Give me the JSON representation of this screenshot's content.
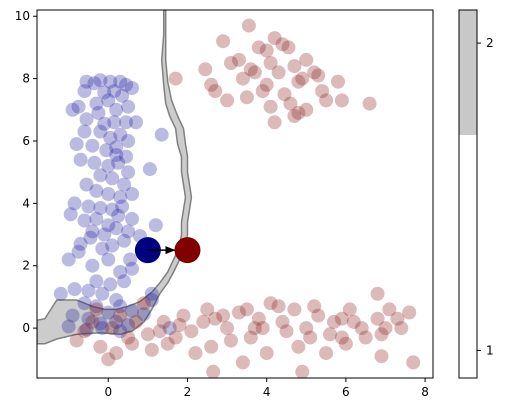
{
  "chart_data": {
    "type": "scatter",
    "title": "",
    "xlabel": "",
    "ylabel": "",
    "xlim": [
      -1.8,
      8.2
    ],
    "ylim": [
      -1.6,
      10.2
    ],
    "x_ticks": [
      0,
      2,
      4,
      6,
      8
    ],
    "y_ticks": [
      0,
      2,
      4,
      6,
      8,
      10
    ],
    "grid": false,
    "series": [
      {
        "color": "#1f1f9e",
        "alpha": 0.3,
        "points": [
          [
            -0.55,
            7.9
          ],
          [
            -0.35,
            7.85
          ],
          [
            -0.2,
            7.95
          ],
          [
            0.05,
            7.9
          ],
          [
            0.3,
            7.9
          ],
          [
            0.45,
            7.8
          ],
          [
            -0.6,
            7.6
          ],
          [
            -0.1,
            7.55
          ],
          [
            0.15,
            7.6
          ],
          [
            0.35,
            7.45
          ],
          [
            -0.9,
            7.0
          ],
          [
            -0.75,
            7.1
          ],
          [
            -0.3,
            7.2
          ],
          [
            0.0,
            7.3
          ],
          [
            0.2,
            7.0
          ],
          [
            0.5,
            7.1
          ],
          [
            -0.55,
            6.7
          ],
          [
            -0.1,
            6.55
          ],
          [
            0.15,
            6.6
          ],
          [
            0.45,
            6.6
          ],
          [
            -0.6,
            6.3
          ],
          [
            -0.2,
            6.3
          ],
          [
            0.05,
            6.1
          ],
          [
            0.3,
            6.2
          ],
          [
            0.5,
            6.0
          ],
          [
            -0.4,
            5.85
          ],
          [
            -0.05,
            5.7
          ],
          [
            0.2,
            5.8
          ],
          [
            0.45,
            5.5
          ],
          [
            -0.7,
            5.4
          ],
          [
            -0.35,
            5.3
          ],
          [
            0.0,
            5.2
          ],
          [
            0.25,
            5.3
          ],
          [
            0.5,
            5.0
          ],
          [
            -0.2,
            4.9
          ],
          [
            0.1,
            4.8
          ],
          [
            0.4,
            4.6
          ],
          [
            -0.55,
            4.6
          ],
          [
            -0.3,
            4.4
          ],
          [
            0.0,
            4.3
          ],
          [
            0.3,
            4.2
          ],
          [
            -0.85,
            4.0
          ],
          [
            -0.5,
            3.9
          ],
          [
            -0.2,
            3.85
          ],
          [
            0.1,
            3.8
          ],
          [
            0.35,
            3.9
          ],
          [
            0.6,
            3.5
          ],
          [
            -0.95,
            3.65
          ],
          [
            -0.6,
            3.45
          ],
          [
            -0.3,
            3.5
          ],
          [
            0.0,
            3.3
          ],
          [
            0.25,
            3.6
          ],
          [
            -0.4,
            3.1
          ],
          [
            -0.1,
            3.0
          ],
          [
            0.2,
            3.2
          ],
          [
            0.5,
            3.1
          ],
          [
            0.8,
            2.95
          ],
          [
            -0.7,
            2.7
          ],
          [
            -0.45,
            2.9
          ],
          [
            -0.15,
            2.55
          ],
          [
            0.1,
            2.65
          ],
          [
            0.4,
            2.8
          ],
          [
            -1.0,
            2.2
          ],
          [
            -0.75,
            2.45
          ],
          [
            -0.4,
            2.0
          ],
          [
            0.0,
            2.2
          ],
          [
            0.3,
            1.8
          ],
          [
            0.6,
            1.9
          ],
          [
            -0.3,
            1.5
          ],
          [
            0.05,
            1.4
          ],
          [
            0.4,
            1.5
          ],
          [
            -0.85,
            1.25
          ],
          [
            -0.5,
            1.2
          ],
          [
            -0.15,
            1.1
          ],
          [
            0.2,
            0.9
          ],
          [
            -0.6,
            0.8
          ],
          [
            -0.3,
            0.7
          ],
          [
            0.0,
            0.5
          ],
          [
            0.3,
            0.7
          ],
          [
            0.6,
            0.55
          ],
          [
            -0.9,
            0.4
          ],
          [
            -0.5,
            0.3
          ],
          [
            -0.2,
            0.15
          ],
          [
            0.2,
            0.2
          ],
          [
            0.5,
            0.1
          ],
          [
            0.9,
            0.45
          ],
          [
            -1.0,
            0.05
          ],
          [
            -0.55,
            -0.05
          ],
          [
            -0.15,
            0.0
          ],
          [
            0.3,
            -0.1
          ],
          [
            1.35,
            6.2
          ],
          [
            1.05,
            5.1
          ],
          [
            1.2,
            3.3
          ],
          [
            0.95,
            2.3
          ],
          [
            1.1,
            1.1
          ],
          [
            1.55,
            0.0
          ],
          [
            1.1,
            0.9
          ],
          [
            -0.8,
            5.9
          ],
          [
            0.6,
            4.3
          ],
          [
            0.55,
            2.2
          ],
          [
            -1.2,
            1.1
          ],
          [
            0.7,
            6.6
          ],
          [
            0.6,
            7.7
          ],
          [
            -0.25,
            6.9
          ],
          [
            0.2,
            5.55
          ]
        ]
      },
      {
        "color": "#8b1a1a",
        "alpha": 0.3,
        "points": [
          [
            1.7,
            8.0
          ],
          [
            2.45,
            8.3
          ],
          [
            2.9,
            9.2
          ],
          [
            3.55,
            9.7
          ],
          [
            3.1,
            8.5
          ],
          [
            3.4,
            8.0
          ],
          [
            3.8,
            9.0
          ],
          [
            4.2,
            9.3
          ],
          [
            4.55,
            9.0
          ],
          [
            3.7,
            8.2
          ],
          [
            4.0,
            7.8
          ],
          [
            4.3,
            8.2
          ],
          [
            4.7,
            8.4
          ],
          [
            5.0,
            8.6
          ],
          [
            4.45,
            7.5
          ],
          [
            4.8,
            7.9
          ],
          [
            5.2,
            8.2
          ],
          [
            5.4,
            7.6
          ],
          [
            4.1,
            7.1
          ],
          [
            4.6,
            7.2
          ],
          [
            5.0,
            7.0
          ],
          [
            3.5,
            7.4
          ],
          [
            2.7,
            7.6
          ],
          [
            3.0,
            7.3
          ],
          [
            3.9,
            7.6
          ],
          [
            4.2,
            6.6
          ],
          [
            4.7,
            6.8
          ],
          [
            5.5,
            7.3
          ],
          [
            5.8,
            7.9
          ],
          [
            6.6,
            7.2
          ],
          [
            5.9,
            7.3
          ],
          [
            4.4,
            9.1
          ],
          [
            3.3,
            8.6
          ],
          [
            4.0,
            8.9
          ],
          [
            2.6,
            7.8
          ],
          [
            5.3,
            8.1
          ],
          [
            4.8,
            6.9
          ],
          [
            3.6,
            8.3
          ],
          [
            4.1,
            8.5
          ],
          [
            4.9,
            8.0
          ],
          [
            1.4,
            0.2
          ],
          [
            1.8,
            0.1
          ],
          [
            2.1,
            -0.1
          ],
          [
            2.5,
            0.6
          ],
          [
            2.7,
            0.3
          ],
          [
            3.0,
            0.0
          ],
          [
            3.3,
            0.5
          ],
          [
            3.6,
            -0.3
          ],
          [
            3.8,
            0.3
          ],
          [
            4.1,
            0.8
          ],
          [
            4.4,
            0.2
          ],
          [
            4.7,
            0.6
          ],
          [
            5.0,
            0.0
          ],
          [
            5.3,
            0.4
          ],
          [
            5.6,
            -0.2
          ],
          [
            5.9,
            0.3
          ],
          [
            6.2,
            0.2
          ],
          [
            6.5,
            -0.3
          ],
          [
            6.8,
            0.3
          ],
          [
            7.1,
            0.6
          ],
          [
            7.4,
            0.0
          ],
          [
            7.7,
            -1.1
          ],
          [
            6.9,
            -0.9
          ],
          [
            5.5,
            -0.8
          ],
          [
            4.9,
            -1.4
          ],
          [
            4.0,
            -0.8
          ],
          [
            3.4,
            -1.1
          ],
          [
            2.65,
            -1.4
          ],
          [
            2.2,
            -0.8
          ],
          [
            1.7,
            -0.3
          ],
          [
            1.1,
            -0.7
          ],
          [
            0.6,
            -0.5
          ],
          [
            0.2,
            -0.8
          ],
          [
            -0.2,
            -0.6
          ],
          [
            -0.6,
            -0.1
          ],
          [
            0.0,
            -1.0
          ],
          [
            -0.3,
            0.6
          ],
          [
            0.3,
            0.4
          ],
          [
            0.7,
            0.2
          ],
          [
            1.0,
            -0.2
          ],
          [
            1.3,
            -0.1
          ],
          [
            2.4,
            0.2
          ],
          [
            3.1,
            -0.4
          ],
          [
            3.9,
            0.0
          ],
          [
            4.5,
            -0.1
          ],
          [
            5.1,
            -0.3
          ],
          [
            5.7,
            0.2
          ],
          [
            6.0,
            -0.5
          ],
          [
            6.4,
            0.0
          ],
          [
            7.0,
            0.0
          ],
          [
            7.3,
            0.3
          ],
          [
            7.6,
            0.5
          ],
          [
            6.8,
            1.1
          ],
          [
            6.1,
            0.6
          ],
          [
            5.2,
            0.7
          ],
          [
            4.3,
            0.7
          ],
          [
            3.5,
            0.6
          ],
          [
            2.9,
            0.4
          ],
          [
            2.6,
            -0.6
          ],
          [
            1.9,
            0.4
          ],
          [
            1.5,
            -0.5
          ],
          [
            0.9,
            0.8
          ],
          [
            0.5,
            -0.3
          ],
          [
            -0.4,
            0.2
          ],
          [
            -0.8,
            -0.4
          ],
          [
            0.1,
            0.0
          ],
          [
            3.7,
            0.0
          ],
          [
            4.8,
            -0.6
          ],
          [
            5.9,
            -0.3
          ],
          [
            6.9,
            -0.2
          ]
        ]
      }
    ],
    "highlight": {
      "start": {
        "x": 1.0,
        "y": 2.5,
        "color": "#000080"
      },
      "end": {
        "x": 2.0,
        "y": 2.5,
        "color": "#800000"
      },
      "arrow": "start-to-end"
    },
    "boundary_band": {
      "fill": "#cccccc",
      "stroke": "#808080",
      "left_edge": [
        [
          1.4,
          10.2
        ],
        [
          1.4,
          9.4
        ],
        [
          1.35,
          8.6
        ],
        [
          1.4,
          7.8
        ],
        [
          1.45,
          7.2
        ],
        [
          1.55,
          6.8
        ],
        [
          1.7,
          6.4
        ],
        [
          1.75,
          5.9
        ],
        [
          1.85,
          5.5
        ],
        [
          1.85,
          5.0
        ],
        [
          1.9,
          4.6
        ],
        [
          1.95,
          4.2
        ],
        [
          1.9,
          3.8
        ],
        [
          1.85,
          3.4
        ],
        [
          1.85,
          3.0
        ],
        [
          1.8,
          2.6
        ],
        [
          1.65,
          2.2
        ],
        [
          1.5,
          1.8
        ],
        [
          1.3,
          1.45
        ],
        [
          1.1,
          1.15
        ],
        [
          0.8,
          0.85
        ],
        [
          0.5,
          0.7
        ],
        [
          0.2,
          0.6
        ],
        [
          -0.1,
          0.6
        ],
        [
          -0.4,
          0.7
        ],
        [
          -0.8,
          0.9
        ],
        [
          -1.3,
          0.9
        ],
        [
          -1.6,
          0.3
        ],
        [
          -1.8,
          0.25
        ]
      ],
      "right_edge": [
        [
          1.45,
          10.2
        ],
        [
          1.45,
          9.4
        ],
        [
          1.45,
          8.6
        ],
        [
          1.5,
          7.9
        ],
        [
          1.6,
          7.3
        ],
        [
          1.75,
          6.8
        ],
        [
          1.9,
          6.4
        ],
        [
          1.95,
          5.9
        ],
        [
          2.0,
          5.5
        ],
        [
          2.0,
          5.0
        ],
        [
          2.05,
          4.6
        ],
        [
          2.1,
          4.2
        ],
        [
          2.05,
          3.8
        ],
        [
          2.0,
          3.4
        ],
        [
          2.0,
          3.0
        ],
        [
          1.95,
          2.6
        ],
        [
          1.8,
          2.2
        ],
        [
          1.65,
          1.8
        ],
        [
          1.5,
          1.45
        ],
        [
          1.3,
          1.1
        ],
        [
          1.1,
          0.6
        ],
        [
          0.9,
          0.2
        ],
        [
          0.6,
          -0.1
        ],
        [
          0.3,
          -0.2
        ],
        [
          -0.2,
          -0.15
        ],
        [
          -0.8,
          -0.2
        ],
        [
          -1.3,
          -0.35
        ],
        [
          -1.6,
          -0.5
        ],
        [
          -1.8,
          -0.5
        ]
      ]
    },
    "colorbar": {
      "tick_labels": [
        "1",
        "2"
      ],
      "upper_fill": "#c8c8c8",
      "lower_fill": "#ffffff",
      "split_fraction": 0.66
    }
  }
}
